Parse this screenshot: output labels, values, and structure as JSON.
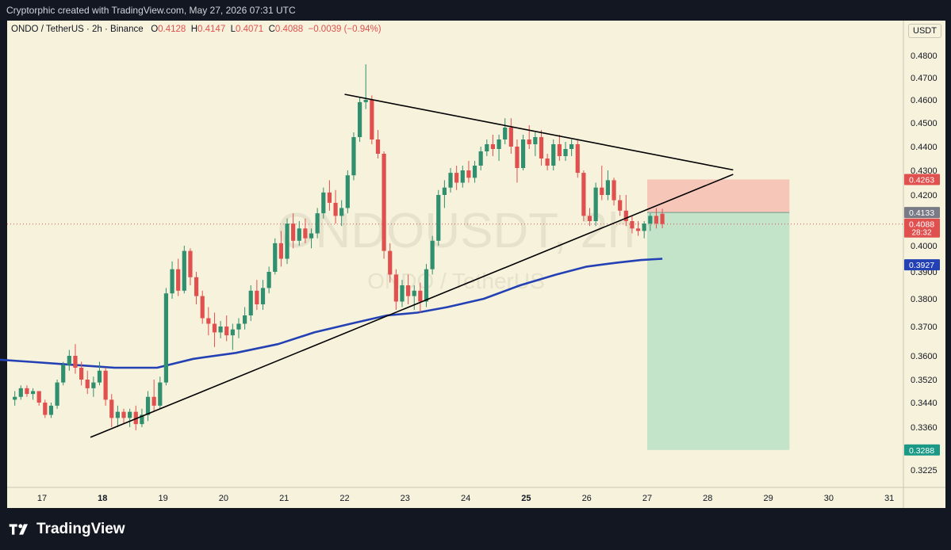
{
  "header": {
    "credit": "Cryptorphic created with TradingView.com, May 27, 2026 07:31 UTC"
  },
  "legend": {
    "symbol": "ONDO / TetherUS · 2h · Binance",
    "o_label": "O",
    "o": "0.4128",
    "h_label": "H",
    "h": "0.4147",
    "l_label": "L",
    "l": "0.4071",
    "c_label": "C",
    "c": "0.4088",
    "change": "−0.0039 (−0.94%)"
  },
  "axis_unit": "USDT",
  "watermark": {
    "symbol": "ONDOUSDT, 2h",
    "name": "ONDO / TetherUS"
  },
  "price_tags": [
    {
      "value": "0.4263",
      "color": "#e0504e"
    },
    {
      "value": "0.4133",
      "color": "#787b86"
    },
    {
      "value": "0.4088",
      "sub": "28:32",
      "color": "#e0504e"
    },
    {
      "value": "0.3927",
      "color": "#2341b4"
    },
    {
      "value": "0.3288",
      "color": "#1a9a86"
    }
  ],
  "footer": {
    "brand": "TradingView"
  },
  "chart_data": {
    "type": "candlestick",
    "title": "ONDO / TetherUS · 2h · Binance",
    "x_ticks": [
      "17",
      "18",
      "19",
      "20",
      "21",
      "22",
      "23",
      "24",
      "25",
      "26",
      "27",
      "28",
      "29",
      "30",
      "31"
    ],
    "y_ticks": [
      "0.4800",
      "0.4700",
      "0.4600",
      "0.4500",
      "0.4400",
      "0.4300",
      "0.4200",
      "0.4000",
      "0.3900",
      "0.3800",
      "0.3700",
      "0.3600",
      "0.3520",
      "0.3440",
      "0.3360",
      "0.3225"
    ],
    "ylim": [
      0.318,
      0.487
    ],
    "candles": [
      [
        16.55,
        0.345,
        0.348,
        0.343,
        0.346
      ],
      [
        16.65,
        0.346,
        0.35,
        0.345,
        0.349
      ],
      [
        16.75,
        0.349,
        0.35,
        0.346,
        0.347
      ],
      [
        16.85,
        0.347,
        0.349,
        0.345,
        0.348
      ],
      [
        16.95,
        0.348,
        0.348,
        0.343,
        0.344
      ],
      [
        17.05,
        0.344,
        0.345,
        0.339,
        0.34
      ],
      [
        17.15,
        0.34,
        0.344,
        0.339,
        0.343
      ],
      [
        17.25,
        0.343,
        0.352,
        0.342,
        0.351
      ],
      [
        17.35,
        0.351,
        0.358,
        0.35,
        0.357
      ],
      [
        17.45,
        0.357,
        0.362,
        0.355,
        0.36
      ],
      [
        17.55,
        0.36,
        0.364,
        0.354,
        0.356
      ],
      [
        17.65,
        0.356,
        0.358,
        0.35,
        0.352
      ],
      [
        17.75,
        0.352,
        0.355,
        0.347,
        0.349
      ],
      [
        17.85,
        0.349,
        0.353,
        0.346,
        0.351
      ],
      [
        17.95,
        0.351,
        0.358,
        0.35,
        0.355
      ],
      [
        18.05,
        0.355,
        0.356,
        0.343,
        0.345
      ],
      [
        18.15,
        0.345,
        0.347,
        0.336,
        0.339
      ],
      [
        18.25,
        0.339,
        0.343,
        0.336,
        0.341
      ],
      [
        18.35,
        0.341,
        0.342,
        0.337,
        0.339
      ],
      [
        18.45,
        0.339,
        0.342,
        0.336,
        0.341
      ],
      [
        18.55,
        0.341,
        0.343,
        0.335,
        0.337
      ],
      [
        18.65,
        0.337,
        0.342,
        0.336,
        0.34
      ],
      [
        18.75,
        0.34,
        0.348,
        0.338,
        0.346
      ],
      [
        18.85,
        0.346,
        0.352,
        0.341,
        0.343
      ],
      [
        18.95,
        0.343,
        0.353,
        0.342,
        0.351
      ],
      [
        19.05,
        0.351,
        0.384,
        0.35,
        0.382
      ],
      [
        19.15,
        0.382,
        0.394,
        0.38,
        0.391
      ],
      [
        19.25,
        0.391,
        0.395,
        0.381,
        0.383
      ],
      [
        19.35,
        0.383,
        0.4,
        0.382,
        0.398
      ],
      [
        19.45,
        0.398,
        0.399,
        0.385,
        0.388
      ],
      [
        19.55,
        0.388,
        0.39,
        0.378,
        0.381
      ],
      [
        19.65,
        0.381,
        0.383,
        0.371,
        0.373
      ],
      [
        19.75,
        0.373,
        0.377,
        0.367,
        0.371
      ],
      [
        19.85,
        0.371,
        0.375,
        0.363,
        0.368
      ],
      [
        19.95,
        0.368,
        0.372,
        0.366,
        0.37
      ],
      [
        20.05,
        0.37,
        0.374,
        0.365,
        0.367
      ],
      [
        20.15,
        0.367,
        0.371,
        0.362,
        0.369
      ],
      [
        20.25,
        0.369,
        0.373,
        0.366,
        0.371
      ],
      [
        20.35,
        0.371,
        0.377,
        0.369,
        0.374
      ],
      [
        20.45,
        0.374,
        0.385,
        0.372,
        0.383
      ],
      [
        20.55,
        0.383,
        0.387,
        0.376,
        0.378
      ],
      [
        20.65,
        0.378,
        0.387,
        0.376,
        0.384
      ],
      [
        20.75,
        0.384,
        0.392,
        0.382,
        0.39
      ],
      [
        20.85,
        0.39,
        0.403,
        0.389,
        0.401
      ],
      [
        20.95,
        0.401,
        0.406,
        0.392,
        0.395
      ],
      [
        21.05,
        0.395,
        0.411,
        0.393,
        0.409
      ],
      [
        21.15,
        0.409,
        0.413,
        0.399,
        0.402
      ],
      [
        21.25,
        0.402,
        0.41,
        0.4,
        0.407
      ],
      [
        21.35,
        0.407,
        0.411,
        0.401,
        0.403
      ],
      [
        21.45,
        0.403,
        0.407,
        0.399,
        0.405
      ],
      [
        21.55,
        0.405,
        0.415,
        0.403,
        0.413
      ],
      [
        21.65,
        0.413,
        0.423,
        0.411,
        0.421
      ],
      [
        21.75,
        0.421,
        0.426,
        0.414,
        0.417
      ],
      [
        21.85,
        0.417,
        0.422,
        0.409,
        0.412
      ],
      [
        21.95,
        0.412,
        0.418,
        0.408,
        0.415
      ],
      [
        22.05,
        0.415,
        0.43,
        0.413,
        0.428
      ],
      [
        22.15,
        0.428,
        0.446,
        0.426,
        0.444
      ],
      [
        22.25,
        0.444,
        0.461,
        0.442,
        0.459
      ],
      [
        22.35,
        0.459,
        0.476,
        0.456,
        0.46
      ],
      [
        22.45,
        0.46,
        0.462,
        0.441,
        0.443
      ],
      [
        22.55,
        0.443,
        0.447,
        0.435,
        0.437
      ],
      [
        22.65,
        0.437,
        0.438,
        0.395,
        0.398
      ],
      [
        22.75,
        0.398,
        0.401,
        0.386,
        0.389
      ],
      [
        22.85,
        0.389,
        0.391,
        0.376,
        0.379
      ],
      [
        22.95,
        0.379,
        0.387,
        0.377,
        0.385
      ],
      [
        23.05,
        0.385,
        0.389,
        0.378,
        0.381
      ],
      [
        23.15,
        0.381,
        0.385,
        0.376,
        0.383
      ],
      [
        23.25,
        0.383,
        0.386,
        0.375,
        0.379
      ],
      [
        23.35,
        0.379,
        0.393,
        0.377,
        0.391
      ],
      [
        23.45,
        0.391,
        0.404,
        0.389,
        0.402
      ],
      [
        23.55,
        0.402,
        0.422,
        0.4,
        0.42
      ],
      [
        23.65,
        0.42,
        0.426,
        0.415,
        0.423
      ],
      [
        23.75,
        0.423,
        0.431,
        0.421,
        0.429
      ],
      [
        23.85,
        0.429,
        0.432,
        0.422,
        0.425
      ],
      [
        23.95,
        0.425,
        0.432,
        0.423,
        0.43
      ],
      [
        24.05,
        0.43,
        0.434,
        0.425,
        0.427
      ],
      [
        24.15,
        0.427,
        0.434,
        0.425,
        0.432
      ],
      [
        24.25,
        0.432,
        0.44,
        0.43,
        0.438
      ],
      [
        24.35,
        0.438,
        0.443,
        0.436,
        0.441
      ],
      [
        24.45,
        0.441,
        0.445,
        0.436,
        0.439
      ],
      [
        24.55,
        0.439,
        0.445,
        0.434,
        0.443
      ],
      [
        24.65,
        0.443,
        0.452,
        0.441,
        0.448
      ],
      [
        24.75,
        0.448,
        0.452,
        0.437,
        0.44
      ],
      [
        24.85,
        0.44,
        0.443,
        0.425,
        0.431
      ],
      [
        24.95,
        0.431,
        0.445,
        0.43,
        0.443
      ],
      [
        25.05,
        0.443,
        0.449,
        0.439,
        0.441
      ],
      [
        25.15,
        0.441,
        0.446,
        0.436,
        0.444
      ],
      [
        25.25,
        0.444,
        0.447,
        0.432,
        0.435
      ],
      [
        25.35,
        0.435,
        0.437,
        0.43,
        0.432
      ],
      [
        25.45,
        0.432,
        0.443,
        0.43,
        0.441
      ],
      [
        25.55,
        0.441,
        0.445,
        0.434,
        0.436
      ],
      [
        25.65,
        0.436,
        0.442,
        0.434,
        0.439
      ],
      [
        25.75,
        0.439,
        0.443,
        0.436,
        0.441
      ],
      [
        25.85,
        0.441,
        0.443,
        0.427,
        0.429
      ],
      [
        25.95,
        0.429,
        0.43,
        0.41,
        0.412
      ],
      [
        26.05,
        0.412,
        0.415,
        0.408,
        0.41
      ],
      [
        26.15,
        0.41,
        0.425,
        0.408,
        0.423
      ],
      [
        26.25,
        0.423,
        0.432,
        0.418,
        0.42
      ],
      [
        26.35,
        0.42,
        0.43,
        0.418,
        0.426
      ],
      [
        26.45,
        0.426,
        0.427,
        0.416,
        0.418
      ],
      [
        26.55,
        0.418,
        0.42,
        0.412,
        0.414
      ],
      [
        26.65,
        0.414,
        0.42,
        0.408,
        0.41
      ],
      [
        26.75,
        0.41,
        0.412,
        0.405,
        0.407
      ],
      [
        26.85,
        0.407,
        0.41,
        0.404,
        0.406
      ],
      [
        26.95,
        0.406,
        0.41,
        0.403,
        0.409
      ],
      [
        27.05,
        0.409,
        0.413,
        0.406,
        0.412
      ],
      [
        27.15,
        0.412,
        0.415,
        0.407,
        0.409
      ],
      [
        27.25,
        0.4128,
        0.4147,
        0.4071,
        0.4088
      ]
    ],
    "ma": [
      [
        16.1,
        0.359
      ],
      [
        16.8,
        0.358
      ],
      [
        17.5,
        0.357
      ],
      [
        18.2,
        0.356
      ],
      [
        18.9,
        0.356
      ],
      [
        19.5,
        0.359
      ],
      [
        20.2,
        0.361
      ],
      [
        20.9,
        0.364
      ],
      [
        21.5,
        0.368
      ],
      [
        22.1,
        0.371
      ],
      [
        22.7,
        0.374
      ],
      [
        23.2,
        0.375
      ],
      [
        23.7,
        0.377
      ],
      [
        24.3,
        0.38
      ],
      [
        24.9,
        0.385
      ],
      [
        25.5,
        0.389
      ],
      [
        26.0,
        0.392
      ],
      [
        26.5,
        0.3935
      ],
      [
        26.9,
        0.3945
      ],
      [
        27.25,
        0.395
      ]
    ],
    "trendlines": [
      {
        "x1": 22.0,
        "y1": 0.4625,
        "x2": 28.42,
        "y2": 0.4302
      },
      {
        "x1": 17.8,
        "y1": 0.3328,
        "x2": 28.42,
        "y2": 0.4284
      }
    ],
    "position": {
      "x_start": 27.0,
      "x_end": 29.35,
      "stop": 0.4263,
      "entry": 0.4133,
      "target": 0.3288
    }
  }
}
